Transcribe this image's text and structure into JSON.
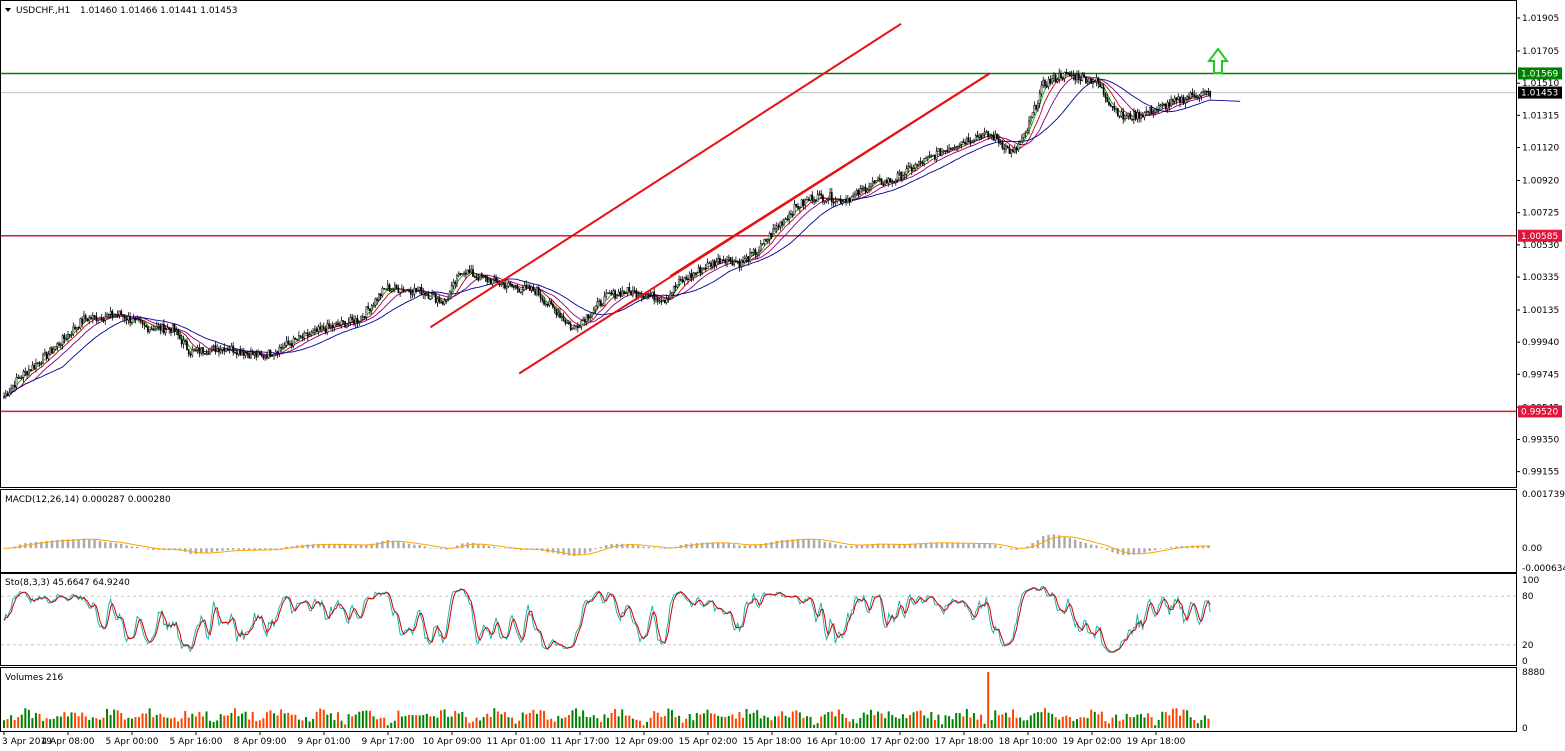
{
  "header": {
    "symbol_text": "USDCHF.,H1",
    "ohlc_text": "1.01460 1.01466 1.01441 1.01453"
  },
  "price_axis": {
    "ticks": [
      "1.01905",
      "1.01705",
      "1.01510",
      "1.01315",
      "1.01120",
      "1.00920",
      "1.00725",
      "1.00530",
      "1.00335",
      "1.00135",
      "0.99940",
      "0.99745",
      "0.99545",
      "0.99350",
      "0.99155"
    ],
    "labels": {
      "upper_level": "1.01569",
      "current_price": "1.01453",
      "middle_level": "1.00585",
      "lower_level": "0.99520"
    }
  },
  "time_axis": [
    "3 Apr 2019",
    "4 Apr 08:00",
    "5 Apr 00:00",
    "5 Apr 16:00",
    "8 Apr 09:00",
    "9 Apr 01:00",
    "9 Apr 17:00",
    "10 Apr 09:00",
    "11 Apr 01:00",
    "11 Apr 17:00",
    "12 Apr 09:00",
    "15 Apr 02:00",
    "15 Apr 18:00",
    "16 Apr 10:00",
    "17 Apr 02:00",
    "17 Apr 18:00",
    "18 Apr 10:00",
    "19 Apr 02:00",
    "19 Apr 18:00"
  ],
  "macd_panel": {
    "label": "MACD(12,26,14) 0.000287 0.000280",
    "ticks": [
      "0.001739",
      "0.00",
      "-0.000634"
    ]
  },
  "stoch_panel": {
    "label": "Sto(8,3,3) 45.6647 64.9240",
    "ticks": [
      "100",
      "80",
      "20",
      "0"
    ]
  },
  "volume_panel": {
    "label": "Volumes 216",
    "ticks": [
      "8880",
      "0"
    ]
  },
  "colors": {
    "upper_level_line": "#008000",
    "red_levels": "#e0143c",
    "channel": "#e81010",
    "up_arrow": "#22cc22",
    "bull_bar": "#008000",
    "bear_bar": "#ff4500",
    "histogram": "#aaaaaa",
    "macd_signal": "#ffa500",
    "stoch_main": "#20b2aa",
    "stoch_signal": "#d00000"
  },
  "chart_data": {
    "type": "candlestick",
    "symbol": "USDCHF.",
    "timeframe": "H1",
    "ylim": [
      0.9908,
      1.0199
    ],
    "horizontal_levels": [
      1.01569,
      1.00585,
      0.9952
    ],
    "current_price": 1.01453,
    "close_anchors": [
      [
        0,
        0.9961
      ],
      [
        8,
        0.9972
      ],
      [
        25,
        0.9987
      ],
      [
        45,
        1.0008
      ],
      [
        65,
        1.0011
      ],
      [
        80,
        1.0003
      ],
      [
        95,
        1.0002
      ],
      [
        105,
        0.9988
      ],
      [
        125,
        0.9991
      ],
      [
        145,
        0.9985
      ],
      [
        160,
        0.9993
      ],
      [
        180,
        1.0002
      ],
      [
        200,
        1.0008
      ],
      [
        215,
        1.0027
      ],
      [
        235,
        1.0025
      ],
      [
        248,
        1.0018
      ],
      [
        258,
        1.0038
      ],
      [
        268,
        1.0033
      ],
      [
        288,
        1.0027
      ],
      [
        300,
        1.0025
      ],
      [
        305,
        1.0018
      ],
      [
        312,
        1.0012
      ],
      [
        320,
        1.0002
      ],
      [
        330,
        1.0012
      ],
      [
        340,
        1.0022
      ],
      [
        350,
        1.0025
      ],
      [
        365,
        1.0022
      ],
      [
        372,
        1.002
      ],
      [
        380,
        1.003
      ],
      [
        395,
        1.004
      ],
      [
        405,
        1.0045
      ],
      [
        415,
        1.0042
      ],
      [
        425,
        1.005
      ],
      [
        435,
        1.0064
      ],
      [
        445,
        1.0075
      ],
      [
        455,
        1.0082
      ],
      [
        465,
        1.0082
      ],
      [
        470,
        1.008
      ],
      [
        478,
        1.0082
      ],
      [
        488,
        1.009
      ],
      [
        500,
        1.0092
      ],
      [
        515,
        1.0102
      ],
      [
        525,
        1.0108
      ],
      [
        535,
        1.0114
      ],
      [
        550,
        1.012
      ],
      [
        558,
        1.0118
      ],
      [
        568,
        1.0108
      ],
      [
        575,
        1.012
      ],
      [
        585,
        1.015
      ],
      [
        595,
        1.0156
      ],
      [
        605,
        1.0155
      ],
      [
        615,
        1.0152
      ],
      [
        622,
        1.014
      ],
      [
        630,
        1.013
      ],
      [
        640,
        1.0132
      ],
      [
        650,
        1.0136
      ],
      [
        660,
        1.014
      ],
      [
        670,
        1.0144
      ],
      [
        678,
        1.0145
      ]
    ],
    "moving_averages": [
      {
        "color": "#00b000",
        "period": 5
      },
      {
        "color": "#c00020",
        "period": 10
      },
      {
        "color": "#800080",
        "period": 18
      },
      {
        "color": "#000090",
        "period": 34
      }
    ],
    "channel_lines": [
      {
        "from": [
          240,
          1.0003
        ],
        "to": [
          505,
          1.0187
        ]
      },
      {
        "from": [
          290,
          0.9975
        ],
        "to": [
          555,
          1.0157
        ]
      },
      {
        "from": [
          375,
          1.0034
        ],
        "to": [
          555,
          1.0157
        ]
      }
    ],
    "macd": {
      "ylim": [
        -0.000634,
        0.001739
      ],
      "signal_period": 14
    },
    "stochastic": {
      "k": 8,
      "d": 3,
      "slowing": 3,
      "ylim": [
        0,
        100
      ],
      "levels": [
        80,
        20
      ]
    },
    "volume": {
      "ylim": [
        0,
        8880
      ],
      "spike_index": 555
    }
  }
}
